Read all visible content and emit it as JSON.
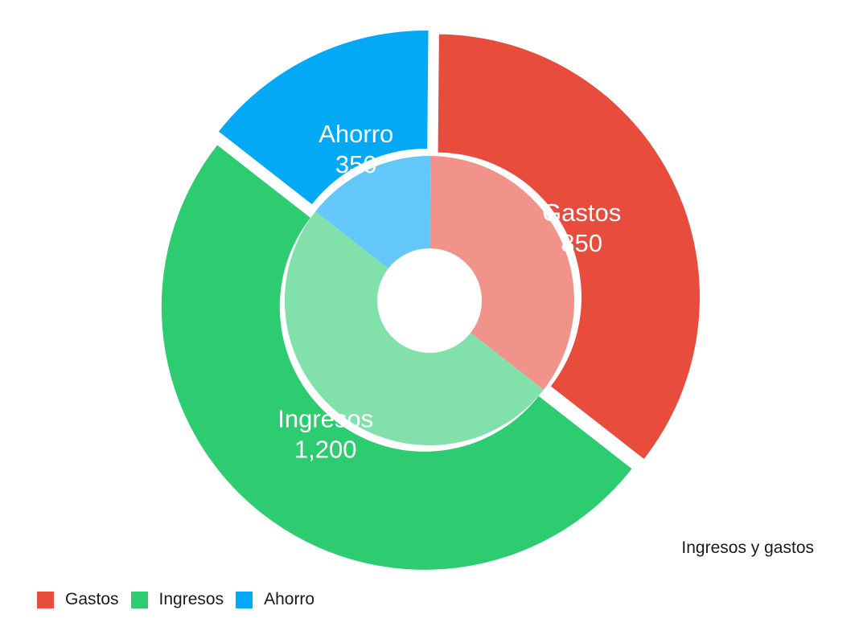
{
  "chart_data": {
    "type": "pie",
    "title": "Ingresos y gastos",
    "categories": [
      "Gastos",
      "Ingresos",
      "Ahorro"
    ],
    "values": [
      850,
      1200,
      350
    ],
    "value_labels": [
      "850",
      "1,200",
      "350"
    ],
    "colors": [
      "#e74c3c",
      "#2ecc71",
      "#03a9f4"
    ],
    "inner_colors": [
      "#f1938a",
      "#82e0aa",
      "#63c8f9"
    ],
    "legend_position": "bottom-left",
    "title_position": "bottom-right",
    "exploded": true
  }
}
